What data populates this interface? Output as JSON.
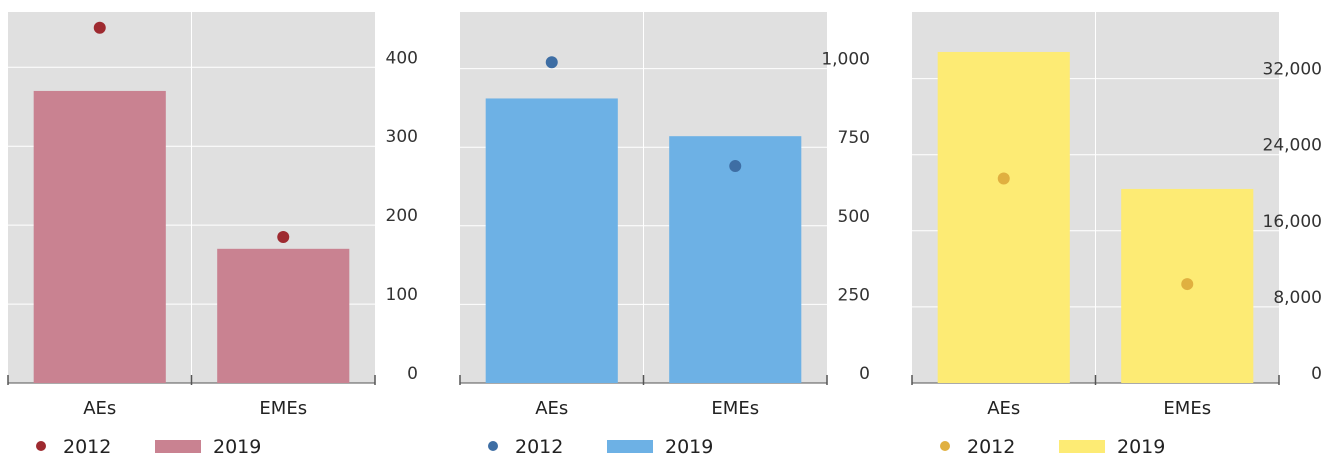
{
  "chart_data": [
    {
      "type": "bar",
      "categories": [
        "AEs",
        "EMEs"
      ],
      "series": [
        {
          "name": "2019",
          "kind": "bar",
          "values": [
            370,
            170
          ]
        },
        {
          "name": "2012",
          "kind": "dot",
          "values": [
            450,
            185
          ]
        }
      ],
      "ylim": [
        0,
        470
      ],
      "yticks": [
        0,
        100,
        200,
        300,
        400
      ],
      "ytick_labels": [
        "0",
        "100",
        "200",
        "300",
        "400"
      ],
      "y_axis_side": "right",
      "grid": true,
      "legend_placement": "bottom",
      "colors": {
        "bar": "#c98291",
        "dot": "#9e2a30",
        "plot_bg": "#e0e0e0"
      }
    },
    {
      "type": "bar",
      "categories": [
        "AEs",
        "EMEs"
      ],
      "series": [
        {
          "name": "2019",
          "kind": "bar",
          "values": [
            905,
            785
          ]
        },
        {
          "name": "2012",
          "kind": "dot",
          "values": [
            1020,
            690
          ]
        }
      ],
      "ylim": [
        0,
        1180
      ],
      "yticks": [
        0,
        250,
        500,
        750,
        1000
      ],
      "ytick_labels": [
        "0",
        "250",
        "500",
        "750",
        "1,000"
      ],
      "y_axis_side": "right",
      "grid": true,
      "legend_placement": "bottom",
      "colors": {
        "bar": "#6db1e5",
        "dot": "#3e6ea4",
        "plot_bg": "#e0e0e0"
      }
    },
    {
      "type": "bar",
      "categories": [
        "AEs",
        "EMEs"
      ],
      "series": [
        {
          "name": "2019",
          "kind": "bar",
          "values": [
            34800,
            20400
          ]
        },
        {
          "name": "2012",
          "kind": "dot",
          "values": [
            21500,
            10400
          ]
        }
      ],
      "ylim": [
        0,
        39000
      ],
      "yticks": [
        0,
        8000,
        16000,
        24000,
        32000
      ],
      "ytick_labels": [
        "0",
        "8,000",
        "16,000",
        "24,000",
        "32,000"
      ],
      "y_axis_side": "right",
      "grid": true,
      "legend_placement": "bottom",
      "colors": {
        "bar": "#fdeb74",
        "dot": "#e0b040",
        "plot_bg": "#e0e0e0"
      }
    }
  ]
}
